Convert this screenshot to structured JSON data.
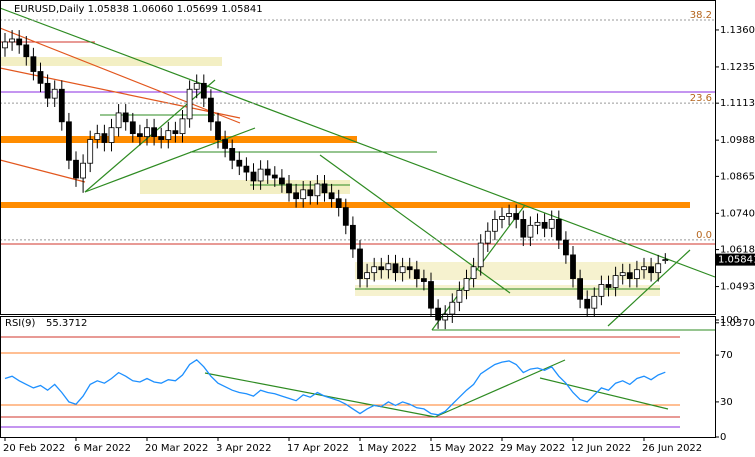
{
  "chart_data": [
    {
      "type": "candlestick",
      "title": "EURUSD,Daily  1.05838 1.06060 1.05699 1.05841",
      "categories": [
        "20 Feb 2022",
        null,
        null,
        null,
        null,
        null,
        null,
        null,
        null,
        null,
        "6 Mar 2022",
        null,
        null,
        null,
        null,
        null,
        null,
        null,
        null,
        null,
        "20 Mar 2022",
        null,
        null,
        null,
        null,
        null,
        null,
        null,
        null,
        null,
        "3 Apr 2022",
        null,
        null,
        null,
        null,
        null,
        null,
        null,
        null,
        null,
        "17 Apr 2022",
        null,
        null,
        null,
        null,
        null,
        null,
        null,
        null,
        null,
        "1 May 2022",
        null,
        null,
        null,
        null,
        null,
        null,
        null,
        null,
        null,
        "15 May 2022",
        null,
        null,
        null,
        null,
        null,
        null,
        null,
        null,
        null,
        "29 May 2022",
        null,
        null,
        null,
        null,
        null,
        null,
        null,
        null,
        null,
        "12 Jun 2022",
        null,
        null,
        null,
        null,
        null,
        null,
        null,
        null,
        null,
        "26 Jun 2022",
        null,
        null,
        null
      ],
      "open": [
        1.13,
        1.132,
        1.133,
        1.131,
        1.127,
        1.122,
        1.118,
        1.113,
        1.116,
        1.105,
        1.092,
        1.086,
        1.091,
        1.099,
        1.101,
        1.098,
        1.103,
        1.108,
        1.105,
        1.101,
        1.1,
        1.103,
        1.1,
        1.099,
        1.102,
        1.101,
        1.106,
        1.116,
        1.118,
        1.113,
        1.105,
        1.099,
        1.096,
        1.092,
        1.09,
        1.088,
        1.085,
        1.089,
        1.087,
        1.086,
        1.084,
        1.081,
        1.079,
        1.082,
        1.08,
        1.084,
        1.081,
        1.079,
        1.076,
        1.07,
        1.062,
        1.052,
        1.054,
        1.056,
        1.055,
        1.057,
        1.054,
        1.056,
        1.055,
        1.052,
        1.051,
        1.042,
        1.038,
        1.04,
        1.044,
        1.048,
        1.052,
        1.056,
        1.064,
        1.068,
        1.072,
        1.073,
        1.074,
        1.072,
        1.066,
        1.07,
        1.071,
        1.069,
        1.072,
        1.065,
        1.06,
        1.052,
        1.045,
        1.042,
        1.046,
        1.05,
        1.049,
        1.053,
        1.054,
        1.052,
        1.055,
        1.056,
        1.054,
        1.05838
      ],
      "high": [
        1.135,
        1.136,
        1.136,
        1.134,
        1.13,
        1.125,
        1.121,
        1.119,
        1.119,
        1.108,
        1.095,
        1.094,
        1.102,
        1.104,
        1.104,
        1.106,
        1.111,
        1.111,
        1.108,
        1.104,
        1.106,
        1.106,
        1.103,
        1.105,
        1.105,
        1.109,
        1.119,
        1.121,
        1.121,
        1.116,
        1.108,
        1.102,
        1.099,
        1.095,
        1.093,
        1.091,
        1.092,
        1.092,
        1.09,
        1.089,
        1.087,
        1.084,
        1.085,
        1.085,
        1.087,
        1.087,
        1.084,
        1.082,
        1.079,
        1.073,
        1.065,
        1.057,
        1.059,
        1.059,
        1.06,
        1.06,
        1.059,
        1.059,
        1.058,
        1.055,
        1.054,
        1.045,
        1.043,
        1.047,
        1.051,
        1.055,
        1.059,
        1.067,
        1.071,
        1.075,
        1.076,
        1.077,
        1.077,
        1.075,
        1.073,
        1.074,
        1.074,
        1.075,
        1.075,
        1.068,
        1.063,
        1.055,
        1.048,
        1.049,
        1.053,
        1.053,
        1.056,
        1.057,
        1.057,
        1.058,
        1.059,
        1.059,
        1.06,
        1.0606
      ],
      "low": [
        1.127,
        1.129,
        1.128,
        1.124,
        1.119,
        1.115,
        1.11,
        1.11,
        1.102,
        1.089,
        1.083,
        1.081,
        1.088,
        1.096,
        1.095,
        1.095,
        1.1,
        1.102,
        1.098,
        1.097,
        1.097,
        1.097,
        1.096,
        1.096,
        1.098,
        1.098,
        1.103,
        1.113,
        1.11,
        1.102,
        1.096,
        1.093,
        1.089,
        1.087,
        1.085,
        1.082,
        1.082,
        1.084,
        1.083,
        1.081,
        1.078,
        1.076,
        1.076,
        1.077,
        1.077,
        1.078,
        1.076,
        1.073,
        1.067,
        1.059,
        1.049,
        1.049,
        1.051,
        1.052,
        1.052,
        1.051,
        1.051,
        1.052,
        1.049,
        1.048,
        1.039,
        1.035,
        1.0349,
        1.037,
        1.041,
        1.045,
        1.049,
        1.053,
        1.061,
        1.065,
        1.069,
        1.07,
        1.069,
        1.063,
        1.063,
        1.067,
        1.066,
        1.066,
        1.062,
        1.057,
        1.049,
        1.042,
        1.039,
        1.039,
        1.043,
        1.046,
        1.046,
        1.05,
        1.049,
        1.049,
        1.052,
        1.051,
        1.051,
        1.05699
      ],
      "close": [
        1.132,
        1.133,
        1.131,
        1.127,
        1.122,
        1.118,
        1.113,
        1.116,
        1.105,
        1.092,
        1.086,
        1.091,
        1.099,
        1.101,
        1.098,
        1.103,
        1.108,
        1.105,
        1.101,
        1.1,
        1.103,
        1.1,
        1.099,
        1.102,
        1.101,
        1.106,
        1.116,
        1.118,
        1.113,
        1.105,
        1.099,
        1.096,
        1.092,
        1.09,
        1.088,
        1.085,
        1.089,
        1.087,
        1.086,
        1.084,
        1.081,
        1.079,
        1.082,
        1.08,
        1.084,
        1.081,
        1.079,
        1.076,
        1.07,
        1.062,
        1.052,
        1.054,
        1.056,
        1.055,
        1.057,
        1.054,
        1.056,
        1.055,
        1.052,
        1.051,
        1.042,
        1.038,
        1.04,
        1.044,
        1.048,
        1.052,
        1.056,
        1.064,
        1.068,
        1.072,
        1.073,
        1.074,
        1.072,
        1.066,
        1.07,
        1.071,
        1.069,
        1.072,
        1.065,
        1.06,
        1.052,
        1.045,
        1.042,
        1.046,
        1.05,
        1.049,
        1.053,
        1.054,
        1.052,
        1.055,
        1.056,
        1.054,
        1.057,
        1.05841
      ],
      "ylim": [
        1.0336,
        1.1455
      ],
      "yticks": [
        1.13605,
        1.12355,
        {
          "value": 1.1113,
          "label": "1.11130"
        },
        {
          "value": 1.0988,
          "label": "1.09880"
        },
        1.08655,
        1.07405,
        {
          "value": 1.0618,
          "label": "1.06180"
        },
        {
          "value": 1.0493,
          "label": "1.04930"
        },
        1.03705
      ],
      "grid": false,
      "annotations": [
        {
          "text": "38.2",
          "price": 1.1394
        },
        {
          "text": "23.6",
          "price": 1.1113
        },
        {
          "text": "0.0",
          "price": 1.0651
        }
      ]
    },
    {
      "type": "line",
      "title": "RSI(9)",
      "series": [
        {
          "name": "RSI(9)",
          "color": "#1e90ff",
          "values": [
            50,
            52,
            48,
            45,
            42,
            44,
            40,
            45,
            38,
            30,
            28,
            35,
            45,
            48,
            46,
            50,
            55,
            52,
            48,
            47,
            50,
            47,
            46,
            49,
            48,
            53,
            62,
            66,
            60,
            52,
            46,
            43,
            40,
            38,
            37,
            35,
            40,
            38,
            37,
            35,
            33,
            31,
            36,
            34,
            38,
            35,
            33,
            31,
            28,
            24,
            20,
            24,
            27,
            26,
            30,
            27,
            30,
            28,
            25,
            24,
            20,
            19,
            22,
            28,
            34,
            40,
            45,
            54,
            58,
            62,
            64,
            65,
            62,
            55,
            58,
            59,
            57,
            60,
            52,
            46,
            38,
            32,
            30,
            36,
            42,
            40,
            46,
            48,
            45,
            50,
            52,
            49,
            53,
            55.3712
          ]
        }
      ],
      "ylim": [
        0,
        100
      ],
      "yticks": [
        100,
        70,
        30,
        0
      ]
    }
  ]
}
